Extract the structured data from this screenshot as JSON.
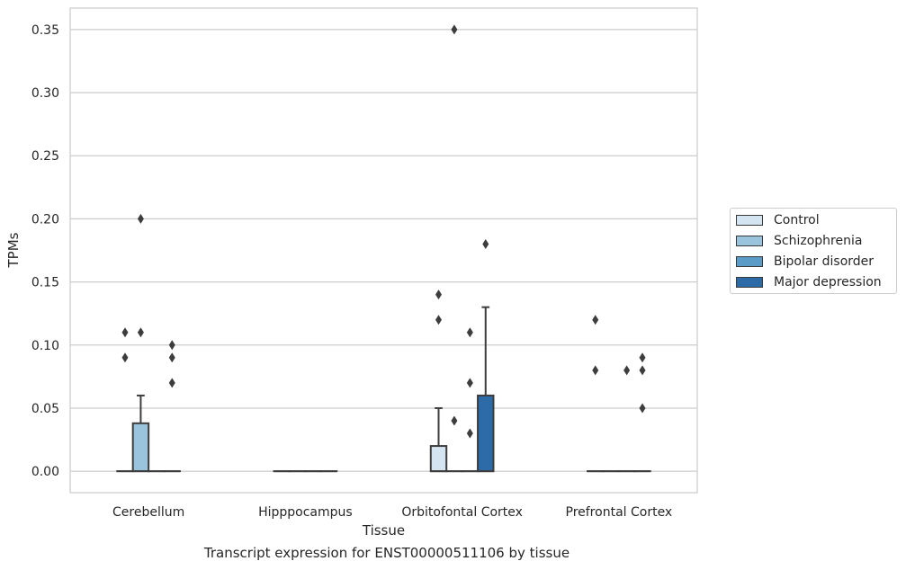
{
  "caption": "Transcript expression for ENST00000511106 by tissue",
  "chart_data": {
    "type": "box",
    "title": "",
    "xlabel": "Tissue",
    "ylabel": "TPMs",
    "ylim": [
      -0.017,
      0.367
    ],
    "yticks": [
      0.0,
      0.05,
      0.1,
      0.15,
      0.2,
      0.25,
      0.3,
      0.35
    ],
    "ytick_labels": [
      "0.00",
      "0.05",
      "0.10",
      "0.15",
      "0.20",
      "0.25",
      "0.30",
      "0.35"
    ],
    "grid": "horizontal",
    "legend_position": "right",
    "categories": [
      "Cerebellum",
      "Hipppocampus",
      "Orbitofontal Cortex",
      "Prefrontal Cortex"
    ],
    "series": [
      {
        "name": "Control",
        "color": "#d4e4f1",
        "boxes": [
          {
            "q1": 0,
            "median": 0,
            "q3": 0,
            "whisker_low": 0,
            "whisker_high": 0,
            "outliers": [
              0.11,
              0.09
            ]
          },
          {
            "q1": 0,
            "median": 0,
            "q3": 0,
            "whisker_low": 0,
            "whisker_high": 0,
            "outliers": []
          },
          {
            "q1": 0,
            "median": 0,
            "q3": 0.02,
            "whisker_low": 0,
            "whisker_high": 0.05,
            "outliers": [
              0.14,
              0.12
            ]
          },
          {
            "q1": 0,
            "median": 0,
            "q3": 0,
            "whisker_low": 0,
            "whisker_high": 0,
            "outliers": [
              0.12,
              0.08
            ]
          }
        ]
      },
      {
        "name": "Schizophrenia",
        "color": "#9ac3de",
        "boxes": [
          {
            "q1": 0,
            "median": 0,
            "q3": 0.038,
            "whisker_low": 0,
            "whisker_high": 0.06,
            "outliers": [
              0.2,
              0.11
            ]
          },
          {
            "q1": 0,
            "median": 0,
            "q3": 0,
            "whisker_low": 0,
            "whisker_high": 0,
            "outliers": []
          },
          {
            "q1": 0,
            "median": 0,
            "q3": 0,
            "whisker_low": 0,
            "whisker_high": 0,
            "outliers": [
              0.35,
              0.04
            ]
          },
          {
            "q1": 0,
            "median": 0,
            "q3": 0,
            "whisker_low": 0,
            "whisker_high": 0,
            "outliers": []
          }
        ]
      },
      {
        "name": "Bipolar disorder",
        "color": "#5a9bc8",
        "boxes": [
          {
            "q1": 0,
            "median": 0,
            "q3": 0,
            "whisker_low": 0,
            "whisker_high": 0,
            "outliers": []
          },
          {
            "q1": 0,
            "median": 0,
            "q3": 0,
            "whisker_low": 0,
            "whisker_high": 0,
            "outliers": []
          },
          {
            "q1": 0,
            "median": 0,
            "q3": 0,
            "whisker_low": 0,
            "whisker_high": 0,
            "outliers": [
              0.11,
              0.07,
              0.03
            ]
          },
          {
            "q1": 0,
            "median": 0,
            "q3": 0,
            "whisker_low": 0,
            "whisker_high": 0,
            "outliers": [
              0.08
            ]
          }
        ]
      },
      {
        "name": "Major depression",
        "color": "#2c6ba8",
        "boxes": [
          {
            "q1": 0,
            "median": 0,
            "q3": 0,
            "whisker_low": 0,
            "whisker_high": 0,
            "outliers": [
              0.1,
              0.09,
              0.07
            ]
          },
          {
            "q1": 0,
            "median": 0,
            "q3": 0,
            "whisker_low": 0,
            "whisker_high": 0,
            "outliers": []
          },
          {
            "q1": 0,
            "median": 0,
            "q3": 0.06,
            "whisker_low": 0,
            "whisker_high": 0.13,
            "outliers": [
              0.18
            ]
          },
          {
            "q1": 0,
            "median": 0,
            "q3": 0,
            "whisker_low": 0,
            "whisker_high": 0,
            "outliers": [
              0.09,
              0.08,
              0.05
            ]
          }
        ]
      }
    ]
  }
}
